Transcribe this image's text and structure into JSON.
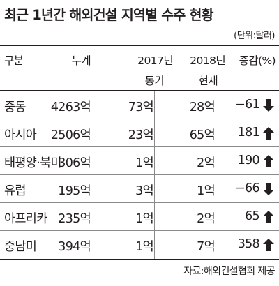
{
  "title": "최근 1년간 해외건설 지역별 수주 현황",
  "unit_note": "(단위:달러)",
  "headers": {
    "category": "구분",
    "total": "누계",
    "y2017_top": "2017년",
    "y2017_bottom": "동기",
    "y2018_top": "2018년",
    "y2018_bottom": "현재",
    "change": "증감(%)"
  },
  "rows": [
    {
      "region": "중동",
      "total": "4263억",
      "y2017": "73억",
      "y2018": "28억",
      "change": "−61",
      "direction": "down"
    },
    {
      "region": "아시아",
      "total": "2506억",
      "y2017": "23억",
      "y2018": "65억",
      "change": "181",
      "direction": "up"
    },
    {
      "region": "태평양·북미",
      "total": "306억",
      "y2017": "1억",
      "y2018": "2억",
      "change": "190",
      "direction": "up"
    },
    {
      "region": "유럽",
      "total": "195억",
      "y2017": "3억",
      "y2018": "1억",
      "change": "−66",
      "direction": "down"
    },
    {
      "region": "아프리카",
      "total": "235억",
      "y2017": "1억",
      "y2018": "2억",
      "change": "65",
      "direction": "up"
    },
    {
      "region": "중남미",
      "total": "394억",
      "y2017": "1억",
      "y2018": "7억",
      "change": "358",
      "direction": "up"
    }
  ],
  "source": "자료:해외건설협회 제공",
  "colors": {
    "text": "#231f20",
    "rule": "#8a8a8a"
  }
}
